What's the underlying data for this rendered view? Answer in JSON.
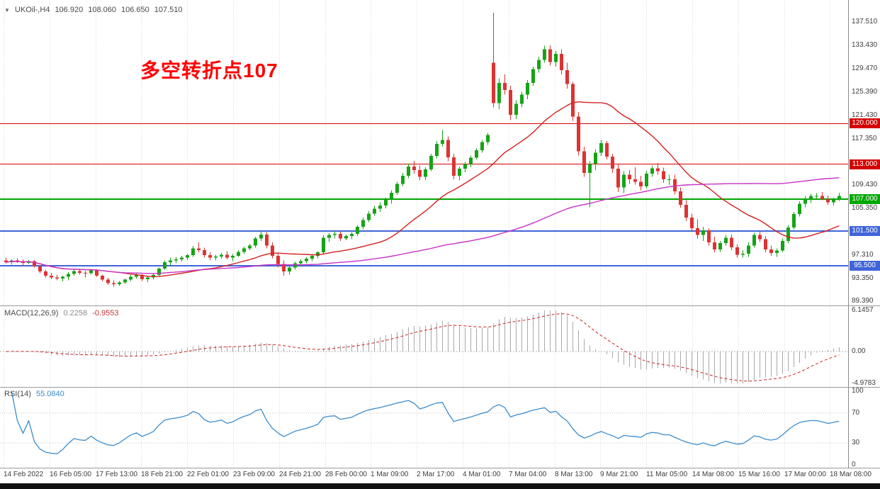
{
  "symbol_bar": {
    "title": "UKOil-,H4",
    "open": "106.920",
    "high": "108.060",
    "low": "106.650",
    "close": "107.510"
  },
  "annotation": {
    "text": "多空转折点107",
    "color": "#ff0000"
  },
  "chart_data": {
    "type": "candlestick",
    "symbol": "UKOil-",
    "timeframe": "H4",
    "title": "UKOil- H4 candlestick chart with MACD and RSI",
    "price_axis": {
      "visible_min": 88.6,
      "visible_max": 141.3,
      "ticks": [
        "137.510",
        "133.430",
        "129.470",
        "125.390",
        "121.430",
        "117.350",
        "109.430",
        "105.350",
        "97.310",
        "93.350",
        "89.390"
      ]
    },
    "hlines": [
      {
        "price": 120.0,
        "label": "120.000",
        "color": "#d40000",
        "width": 1
      },
      {
        "price": 113.0,
        "label": "113.000",
        "color": "#d40000",
        "width": 1
      },
      {
        "price": 107.0,
        "label": "107.000",
        "color": "#00a800",
        "width": 2
      },
      {
        "price": 101.5,
        "label": "101.500",
        "color": "#4065d8",
        "width": 2
      },
      {
        "price": 95.5,
        "label": "95.500",
        "color": "#4065d8",
        "width": 2
      }
    ],
    "colors": {
      "up": "#17a317",
      "down": "#dd3333",
      "ma_fast": "#d42020",
      "ma_slow": "#c832c8",
      "macd_hist": "#a9a9a9",
      "macd_signal": "#cc2222",
      "rsi": "#3c8ccc",
      "grid": "#d8d8d8"
    },
    "ma_fast": {
      "period": 21
    },
    "ma_slow": {
      "period": 89
    },
    "bars": [
      [
        96.4,
        96.9,
        95.9,
        96.1
      ],
      [
        96.1,
        96.6,
        95.7,
        96.4
      ],
      [
        96.4,
        96.8,
        96.0,
        96.2
      ],
      [
        96.2,
        96.6,
        95.4,
        96.0
      ],
      [
        96.0,
        96.5,
        95.8,
        96.3
      ],
      [
        96.3,
        96.5,
        95.2,
        95.4
      ],
      [
        95.4,
        95.6,
        94.2,
        94.5
      ],
      [
        94.5,
        94.8,
        93.5,
        93.8
      ],
      [
        93.8,
        94.3,
        93.2,
        93.5
      ],
      [
        93.5,
        94.0,
        93.0,
        93.3
      ],
      [
        93.3,
        93.8,
        92.8,
        93.6
      ],
      [
        93.6,
        94.4,
        93.0,
        94.1
      ],
      [
        94.1,
        94.9,
        93.8,
        94.6
      ],
      [
        94.6,
        95.0,
        94.0,
        94.3
      ],
      [
        94.3,
        94.6,
        93.5,
        94.2
      ],
      [
        94.2,
        94.9,
        94.0,
        94.7
      ],
      [
        94.7,
        94.9,
        93.6,
        93.8
      ],
      [
        93.8,
        94.0,
        92.8,
        93.1
      ],
      [
        93.1,
        93.4,
        92.2,
        92.5
      ],
      [
        92.5,
        93.0,
        91.9,
        92.3
      ],
      [
        92.3,
        92.9,
        92.0,
        92.6
      ],
      [
        92.6,
        93.3,
        92.4,
        93.1
      ],
      [
        93.1,
        93.9,
        92.8,
        93.6
      ],
      [
        93.6,
        94.2,
        93.3,
        93.9
      ],
      [
        93.9,
        94.1,
        92.9,
        93.2
      ],
      [
        93.2,
        93.8,
        92.7,
        93.5
      ],
      [
        93.5,
        94.2,
        93.1,
        93.9
      ],
      [
        93.9,
        95.2,
        93.7,
        95.0
      ],
      [
        95.0,
        96.4,
        94.8,
        96.1
      ],
      [
        96.1,
        96.9,
        95.6,
        96.4
      ],
      [
        96.4,
        97.0,
        95.9,
        96.6
      ],
      [
        96.6,
        97.2,
        96.2,
        96.9
      ],
      [
        96.9,
        97.5,
        96.5,
        97.3
      ],
      [
        97.3,
        98.9,
        97.0,
        98.5
      ],
      [
        98.5,
        99.5,
        97.8,
        98.2
      ],
      [
        98.2,
        98.6,
        96.9,
        97.3
      ],
      [
        97.3,
        97.8,
        96.5,
        96.9
      ],
      [
        96.9,
        97.4,
        96.4,
        97.1
      ],
      [
        97.1,
        97.7,
        96.7,
        97.4
      ],
      [
        97.4,
        98.0,
        96.6,
        96.9
      ],
      [
        96.9,
        97.5,
        96.3,
        97.2
      ],
      [
        97.2,
        98.2,
        97.0,
        97.9
      ],
      [
        97.9,
        98.8,
        97.6,
        98.5
      ],
      [
        98.5,
        99.3,
        98.2,
        99.0
      ],
      [
        99.0,
        100.5,
        98.6,
        100.2
      ],
      [
        100.2,
        101.6,
        99.8,
        100.9
      ],
      [
        100.9,
        101.3,
        98.5,
        99.0
      ],
      [
        99.0,
        99.5,
        96.8,
        97.2
      ],
      [
        97.2,
        97.6,
        95.2,
        95.8
      ],
      [
        95.8,
        96.4,
        93.8,
        94.5
      ],
      [
        94.5,
        95.5,
        94.0,
        95.2
      ],
      [
        95.2,
        96.2,
        94.8,
        95.9
      ],
      [
        95.9,
        96.6,
        95.4,
        96.3
      ],
      [
        96.3,
        97.0,
        95.9,
        96.7
      ],
      [
        96.7,
        97.5,
        96.3,
        97.2
      ],
      [
        97.2,
        98.0,
        96.8,
        97.8
      ],
      [
        97.8,
        100.8,
        97.5,
        100.3
      ],
      [
        100.3,
        101.2,
        99.6,
        100.8
      ],
      [
        100.8,
        101.5,
        100.2,
        101.0
      ],
      [
        101.0,
        101.4,
        99.8,
        100.2
      ],
      [
        100.2,
        100.9,
        99.9,
        100.6
      ],
      [
        100.6,
        101.3,
        100.1,
        101.0
      ],
      [
        101.0,
        102.5,
        100.6,
        102.2
      ],
      [
        102.2,
        103.8,
        101.8,
        103.4
      ],
      [
        103.4,
        104.9,
        103.0,
        104.5
      ],
      [
        104.5,
        105.8,
        104.1,
        105.3
      ],
      [
        105.3,
        106.4,
        104.8,
        105.9
      ],
      [
        105.9,
        107.3,
        105.4,
        107.0
      ],
      [
        107.0,
        108.5,
        106.2,
        108.1
      ],
      [
        108.1,
        110.0,
        107.7,
        109.6
      ],
      [
        109.6,
        111.5,
        109.2,
        111.0
      ],
      [
        111.0,
        113.1,
        110.6,
        112.6
      ],
      [
        112.6,
        113.6,
        111.4,
        112.0
      ],
      [
        112.0,
        112.8,
        110.2,
        110.8
      ],
      [
        110.8,
        112.5,
        110.3,
        112.1
      ],
      [
        112.1,
        114.8,
        111.8,
        114.4
      ],
      [
        114.4,
        117.0,
        114.0,
        116.5
      ],
      [
        116.5,
        118.9,
        116.0,
        117.2
      ],
      [
        117.2,
        117.8,
        113.5,
        114.2
      ],
      [
        114.2,
        114.8,
        110.4,
        111.0
      ],
      [
        111.0,
        112.6,
        110.2,
        112.2
      ],
      [
        112.2,
        113.4,
        111.6,
        113.0
      ],
      [
        113.0,
        114.5,
        112.5,
        114.1
      ],
      [
        114.1,
        115.8,
        113.8,
        115.4
      ],
      [
        115.4,
        117.2,
        115.0,
        116.8
      ],
      [
        116.8,
        118.4,
        116.3,
        118.0
      ],
      [
        130.5,
        139.1,
        122.8,
        123.5
      ],
      [
        123.5,
        127.8,
        122.5,
        127.0
      ],
      [
        127.0,
        128.5,
        125.0,
        125.8
      ],
      [
        125.8,
        126.5,
        120.6,
        121.5
      ],
      [
        121.5,
        124.0,
        120.8,
        123.4
      ],
      [
        123.4,
        125.5,
        122.8,
        125.0
      ],
      [
        125.0,
        127.5,
        124.2,
        127.0
      ],
      [
        127.0,
        129.8,
        126.5,
        129.4
      ],
      [
        129.4,
        131.5,
        128.8,
        131.0
      ],
      [
        131.0,
        133.4,
        130.5,
        132.8
      ],
      [
        132.8,
        133.5,
        130.0,
        130.6
      ],
      [
        130.6,
        132.5,
        129.8,
        132.0
      ],
      [
        132.0,
        132.8,
        128.5,
        129.2
      ],
      [
        129.2,
        130.5,
        126.0,
        126.8
      ],
      [
        126.8,
        127.2,
        120.5,
        121.2
      ],
      [
        121.2,
        122.0,
        114.5,
        115.2
      ],
      [
        115.2,
        116.0,
        110.8,
        111.5
      ],
      [
        111.5,
        113.5,
        105.6,
        113.0
      ],
      [
        113.0,
        115.5,
        112.0,
        115.0
      ],
      [
        115.0,
        117.2,
        114.4,
        116.6
      ],
      [
        116.6,
        117.0,
        113.8,
        114.3
      ],
      [
        114.3,
        114.8,
        111.5,
        112.2
      ],
      [
        112.2,
        113.0,
        108.2,
        109.0
      ],
      [
        109.0,
        111.8,
        108.0,
        111.2
      ],
      [
        111.2,
        112.0,
        109.6,
        110.4
      ],
      [
        110.4,
        112.5,
        109.5,
        110.0
      ],
      [
        110.0,
        111.0,
        108.5,
        109.2
      ],
      [
        109.2,
        111.8,
        108.8,
        111.4
      ],
      [
        111.4,
        112.8,
        110.8,
        112.3
      ],
      [
        112.3,
        113.2,
        111.2,
        111.8
      ],
      [
        111.8,
        112.4,
        109.8,
        110.4
      ],
      [
        110.4,
        111.2,
        109.4,
        110.4
      ],
      [
        110.4,
        111.2,
        107.8,
        108.3
      ],
      [
        108.3,
        109.0,
        105.5,
        106.0
      ],
      [
        106.0,
        106.8,
        103.2,
        103.8
      ],
      [
        103.8,
        104.5,
        101.5,
        102.0
      ],
      [
        102.0,
        103.5,
        100.2,
        100.8
      ],
      [
        100.8,
        102.2,
        99.8,
        101.6
      ],
      [
        101.6,
        102.0,
        99.0,
        99.5
      ],
      [
        99.5,
        100.5,
        97.8,
        98.3
      ],
      [
        98.3,
        99.8,
        97.9,
        99.4
      ],
      [
        99.4,
        100.8,
        99.0,
        100.3
      ],
      [
        100.3,
        100.9,
        98.2,
        98.7
      ],
      [
        98.7,
        99.2,
        96.9,
        97.4
      ],
      [
        97.4,
        98.2,
        96.9,
        97.6
      ],
      [
        97.6,
        99.5,
        97.0,
        99.0
      ],
      [
        99.0,
        101.2,
        98.6,
        100.8
      ],
      [
        100.8,
        101.5,
        99.6,
        100.1
      ],
      [
        100.1,
        100.6,
        97.8,
        98.3
      ],
      [
        98.3,
        99.0,
        97.2,
        97.7
      ],
      [
        97.7,
        98.5,
        97.0,
        98.1
      ],
      [
        98.1,
        100.2,
        97.8,
        99.8
      ],
      [
        99.8,
        102.5,
        99.4,
        102.1
      ],
      [
        102.1,
        104.8,
        101.8,
        104.4
      ],
      [
        104.4,
        106.6,
        104.0,
        106.2
      ],
      [
        106.2,
        107.5,
        105.6,
        107.1
      ],
      [
        107.1,
        107.9,
        106.3,
        107.5
      ],
      [
        107.5,
        108.0,
        106.9,
        107.5
      ],
      [
        107.5,
        108.2,
        106.8,
        107.0
      ],
      [
        107.0,
        107.6,
        106.0,
        106.4
      ],
      [
        106.4,
        107.2,
        105.9,
        106.92
      ],
      [
        106.92,
        108.06,
        106.65,
        107.51
      ]
    ],
    "time_labels": [
      "14 Feb 2022",
      "16 Feb 05:00",
      "17 Feb 13:00",
      "18 Feb 21:00",
      "22 Feb 01:00",
      "23 Feb 09:00",
      "24 Feb 21:00",
      "28 Feb 00:00",
      "1 Mar 09:00",
      "2 Mar 17:00",
      "4 Mar 01:00",
      "7 Mar 04:00",
      "8 Mar 13:00",
      "9 Mar 21:00",
      "11 Mar 05:00",
      "14 Mar 08:00",
      "15 Mar 16:00",
      "17 Mar 00:00",
      "18 Mar 08:00"
    ],
    "macd": {
      "label": "MACD(12,26,9)",
      "value_main": "0.2258",
      "value_signal": "-0.9553",
      "fast": 12,
      "slow": 26,
      "signal": 9,
      "scale_labels": [
        "6.1457",
        "0.00",
        "-4.9783"
      ]
    },
    "rsi": {
      "label": "RSI(14)",
      "value": "55.0840",
      "period": 14,
      "levels": [
        100,
        70,
        30,
        0
      ],
      "level_lines": [
        70,
        30
      ]
    }
  }
}
